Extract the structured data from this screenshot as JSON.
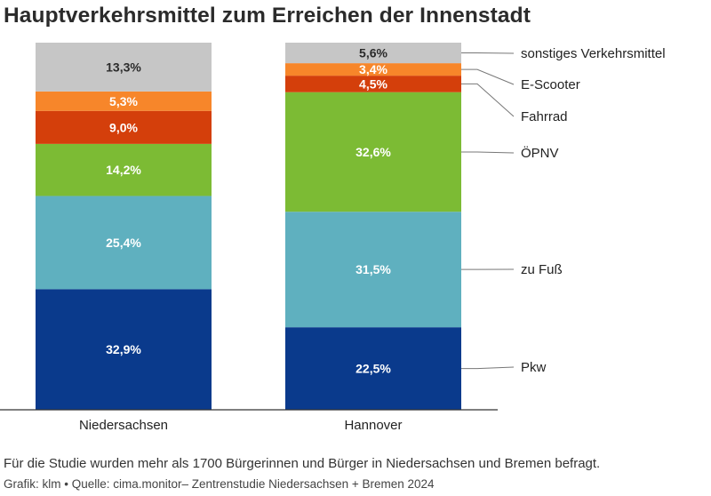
{
  "title": "Hauptverkehrsmittel zum Erreichen der Innenstadt",
  "note": "Für die Studie wurden mehr als 1700 Bürgerinnen und Bürger in Niedersachsen und Bremen befragt.",
  "source": "Grafik: klm • Quelle: cima.monitor– Zentrenstudie Niedersachsen + Bremen 2024",
  "colors": {
    "Pkw": "#0a3a8c",
    "zu Fuß": "#5fb0bf",
    "ÖPNV": "#7cbb34",
    "Fahrrad": "#d43f0b",
    "E-Scooter": "#f7862a",
    "sonstiges Verkehrsmittel": "#c6c6c6"
  },
  "chart_data": {
    "type": "bar",
    "stacked": true,
    "unit": "%",
    "categories": [
      "Niedersachsen",
      "Hannover"
    ],
    "series": [
      {
        "name": "Pkw",
        "values": [
          32.9,
          22.5
        ],
        "labels": [
          "32,9%",
          "22,5%"
        ]
      },
      {
        "name": "zu Fuß",
        "values": [
          25.4,
          31.5
        ],
        "labels": [
          "25,4%",
          "31,5%"
        ]
      },
      {
        "name": "ÖPNV",
        "values": [
          14.2,
          32.6
        ],
        "labels": [
          "14,2%",
          "32,6%"
        ]
      },
      {
        "name": "Fahrrad",
        "values": [
          9.0,
          4.5
        ],
        "labels": [
          "9,0%",
          "4,5%"
        ]
      },
      {
        "name": "E-Scooter",
        "values": [
          5.3,
          3.4
        ],
        "labels": [
          "5,3%",
          "3,4%"
        ]
      },
      {
        "name": "sonstiges Verkehrsmittel",
        "values": [
          13.3,
          5.6
        ],
        "labels": [
          "13,3%",
          "5,6%"
        ]
      }
    ],
    "legend": "right, labels connected to Hannover bar segments"
  }
}
